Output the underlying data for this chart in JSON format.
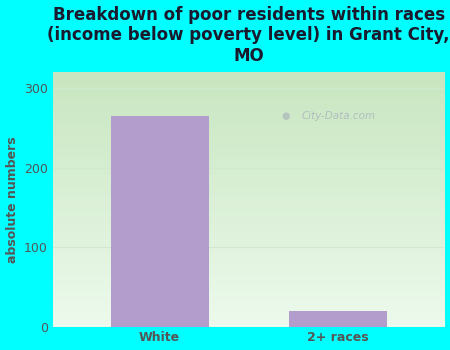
{
  "title": "Breakdown of poor residents within races\n(income below poverty level) in Grant City,\nMO",
  "categories": [
    "White",
    "2+ races"
  ],
  "values": [
    265,
    20
  ],
  "bar_color": "#b39dcd",
  "ylabel": "absolute numbers",
  "ylim": [
    0,
    320
  ],
  "yticks": [
    0,
    100,
    200,
    300
  ],
  "background_color": "#00ffff",
  "grad_top": "#c8e6c0",
  "grad_bottom": "#edfaed",
  "watermark": "City-Data.com",
  "title_fontsize": 12,
  "tick_fontsize": 9,
  "ylabel_fontsize": 9,
  "title_color": "#1a1a2e",
  "tick_color": "#555555",
  "grid_color": "#d0ead0"
}
